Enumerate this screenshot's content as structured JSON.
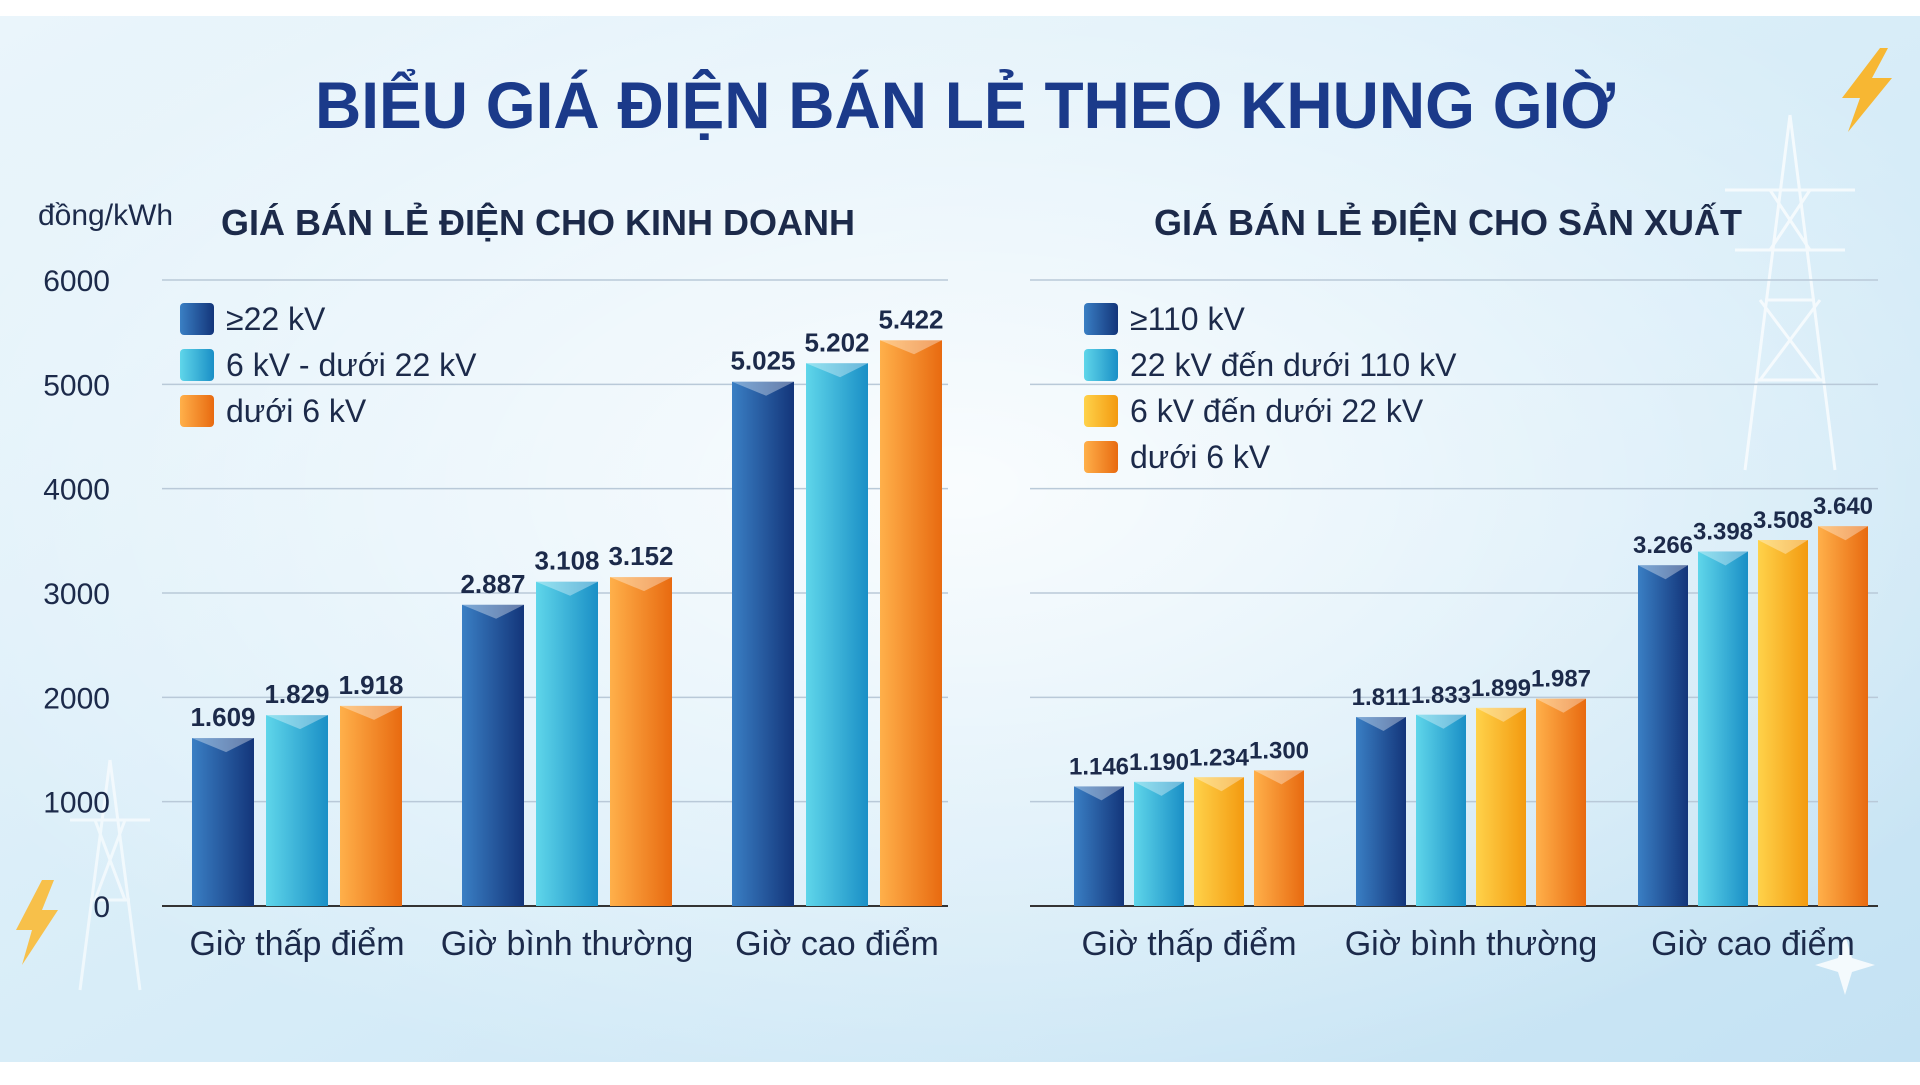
{
  "title": "BIỂU GIÁ ĐIỆN BÁN LẺ THEO KHUNG GIỜ",
  "unit_label": "đồng/kWh",
  "colors": {
    "title": "#1b3a8a",
    "subtitle": "#1c2a4a",
    "grid": "#b9c9d8",
    "axis": "#333333",
    "text": "#1c2a4a",
    "dark_blue": [
      "#3a7fc4",
      "#13357a"
    ],
    "teal": [
      "#5fd6ea",
      "#1a8fc6"
    ],
    "yellow": [
      "#ffd24a",
      "#f39a10"
    ],
    "orange": [
      "#ffb04a",
      "#e86a10"
    ]
  },
  "chart_data": [
    {
      "type": "bar",
      "title": "GIÁ BÁN LẺ ĐIỆN CHO KINH DOANH",
      "ylabel": "đồng/kWh",
      "ylim": [
        0,
        6000
      ],
      "yticks": [
        0,
        1000,
        2000,
        3000,
        4000,
        5000,
        6000
      ],
      "grid": true,
      "legend_position": "top-left",
      "categories": [
        "Giờ thấp điểm",
        "Giờ bình thường",
        "Giờ cao điểm"
      ],
      "series": [
        {
          "name": "≥22 kV",
          "color": "dark_blue",
          "values": [
            1609,
            2887,
            5025
          ],
          "labels": [
            "1.609",
            "2.887",
            "5.025"
          ]
        },
        {
          "name": "6 kV - dưới 22 kV",
          "color": "teal",
          "values": [
            1829,
            3108,
            5202
          ],
          "labels": [
            "1.829",
            "3.108",
            "5.202"
          ]
        },
        {
          "name": "dưới 6 kV",
          "color": "orange",
          "values": [
            1918,
            3152,
            5422
          ],
          "labels": [
            "1.918",
            "3.152",
            "5.422"
          ]
        }
      ]
    },
    {
      "type": "bar",
      "title": "GIÁ BÁN LẺ ĐIỆN CHO SẢN XUẤT",
      "ylim": [
        0,
        6000
      ],
      "grid": true,
      "legend_position": "top-left",
      "categories": [
        "Giờ thấp điểm",
        "Giờ bình thường",
        "Giờ cao điểm"
      ],
      "series": [
        {
          "name": "≥110 kV",
          "color": "dark_blue",
          "values": [
            1146,
            1811,
            3266
          ],
          "labels": [
            "1.146",
            "1.811",
            "3.266"
          ]
        },
        {
          "name": "22 kV đến dưới 110 kV",
          "color": "teal",
          "values": [
            1190,
            1833,
            3398
          ],
          "labels": [
            "1.190",
            "1.833",
            "3.398"
          ]
        },
        {
          "name": "6 kV đến dưới 22 kV",
          "color": "yellow",
          "values": [
            1234,
            1899,
            3508
          ],
          "labels": [
            "1.234",
            "1.899",
            "3.508"
          ]
        },
        {
          "name": "dưới 6 kV",
          "color": "orange",
          "values": [
            1300,
            1987,
            3640
          ],
          "labels": [
            "1.300",
            "1.987",
            "3.640"
          ]
        }
      ]
    }
  ]
}
